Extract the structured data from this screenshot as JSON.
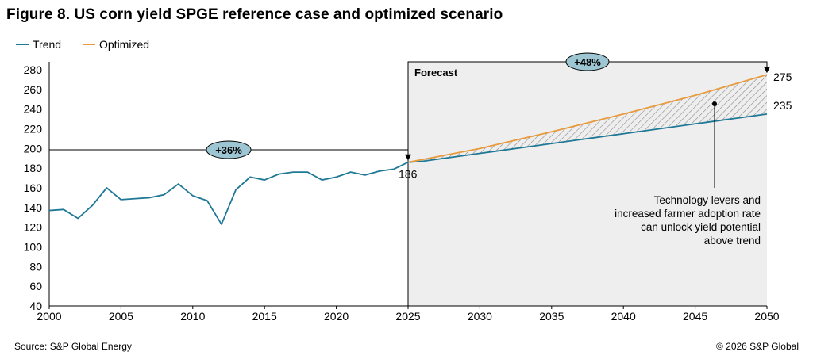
{
  "title": "Figure 8. US corn yield SPGE reference case and optimized scenario",
  "footer": {
    "source": "Source: S&P Global Energy",
    "copyright": "© 2026 S&P Global"
  },
  "colors": {
    "trend": "#1f7896",
    "optimized": "#e89a3c",
    "forecast_bg": "#eeeeee",
    "badge": "#9ec5d2",
    "hatch": "#888888"
  },
  "chart_data": {
    "type": "line",
    "title": "Figure 8. US corn yield SPGE reference case and optimized scenario",
    "xlabel": "",
    "ylabel": "",
    "xlim": [
      2000,
      2050
    ],
    "ylim": [
      40,
      280
    ],
    "xticks": [
      2000,
      2005,
      2010,
      2015,
      2020,
      2025,
      2030,
      2035,
      2040,
      2045,
      2050
    ],
    "yticks": [
      40,
      60,
      80,
      100,
      120,
      140,
      160,
      180,
      200,
      220,
      240,
      260,
      280
    ],
    "grid": false,
    "legend": "top-left",
    "series": [
      {
        "name": "Trend",
        "x": [
          2000,
          2001,
          2002,
          2003,
          2004,
          2005,
          2006,
          2007,
          2008,
          2009,
          2010,
          2011,
          2012,
          2013,
          2014,
          2015,
          2016,
          2017,
          2018,
          2019,
          2020,
          2021,
          2022,
          2023,
          2024,
          2025,
          2026,
          2027,
          2028,
          2029,
          2030,
          2031,
          2032,
          2033,
          2034,
          2035,
          2036,
          2037,
          2038,
          2039,
          2040,
          2041,
          2042,
          2043,
          2044,
          2045,
          2046,
          2047,
          2048,
          2049,
          2050
        ],
        "values": [
          137,
          138,
          129,
          142,
          160,
          148,
          149,
          150,
          153,
          164,
          152,
          147,
          123,
          158,
          171,
          168,
          174,
          176,
          176,
          168,
          171,
          176,
          173,
          177,
          179,
          186,
          187,
          189,
          191,
          193,
          195,
          197,
          199,
          201,
          203,
          205,
          207,
          209,
          211,
          213,
          215,
          217,
          219,
          221,
          223,
          225,
          227,
          229,
          231,
          233,
          235
        ]
      },
      {
        "name": "Optimized",
        "x": [
          2025,
          2030,
          2035,
          2040,
          2045,
          2050
        ],
        "values": [
          186,
          200,
          217,
          235,
          254,
          275
        ]
      }
    ],
    "forecast": {
      "label": "Forecast",
      "start": 2025,
      "end": 2050
    },
    "annotations": [
      {
        "text": "+36%",
        "from_x": 2000,
        "to_x": 2025
      },
      {
        "text": "+48%",
        "from_x": 2025,
        "to_x": 2050
      },
      {
        "text": "186",
        "x": 2025,
        "y": 186
      },
      {
        "text": "275",
        "x": 2050,
        "y": 275
      },
      {
        "text": "235",
        "x": 2050,
        "y": 235
      },
      {
        "text": "Technology levers and increased farmer adoption rate can unlock yield potential above trend",
        "lines": [
          "Technology levers and",
          "increased farmer adoption rate",
          "can unlock yield potential",
          "above trend"
        ]
      }
    ]
  }
}
